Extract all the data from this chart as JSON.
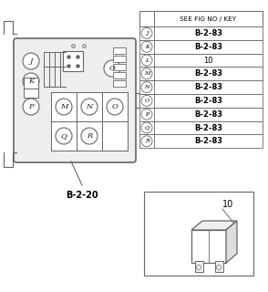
{
  "bg_color": "#ffffff",
  "title_ref": "B-2-20",
  "table_header_text": "SEE FIG NO / KEY",
  "table_rows": [
    [
      "J",
      "B-2-83"
    ],
    [
      "K",
      "B-2-83"
    ],
    [
      "L",
      "10"
    ],
    [
      "M",
      "B-2-83"
    ],
    [
      "N",
      "B-2-83"
    ],
    [
      "O",
      "B-2-83"
    ],
    [
      "P",
      "B-2-83"
    ],
    [
      "Q",
      "B-2-83"
    ],
    [
      "R",
      "B-2-83"
    ]
  ],
  "bold_rows": [
    0,
    1,
    3,
    4,
    5,
    6,
    7,
    8
  ],
  "relay_label": "10",
  "line_color": "#666666",
  "fill_light": "#eeeeee",
  "fill_mid": "#dddddd",
  "fill_dark": "#cccccc"
}
